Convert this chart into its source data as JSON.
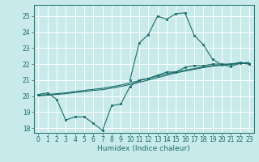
{
  "title": "",
  "xlabel": "Humidex (Indice chaleur)",
  "background_color": "#c8eaea",
  "grid_color": "#ffffff",
  "line_color": "#1a6b6b",
  "xlim": [
    -0.5,
    23.5
  ],
  "ylim": [
    17.7,
    25.7
  ],
  "yticks": [
    18,
    19,
    20,
    21,
    22,
    23,
    24,
    25
  ],
  "xticks": [
    0,
    1,
    2,
    3,
    4,
    5,
    6,
    7,
    8,
    9,
    10,
    11,
    12,
    13,
    14,
    15,
    16,
    17,
    18,
    19,
    20,
    21,
    22,
    23
  ],
  "line1_x": [
    0,
    1,
    2,
    3,
    4,
    5,
    6,
    7,
    8,
    9,
    10,
    11,
    12,
    13,
    14,
    15,
    16,
    17,
    18,
    19,
    20,
    21,
    22,
    23
  ],
  "line1_y": [
    20.1,
    20.2,
    19.8,
    18.5,
    18.7,
    18.7,
    18.3,
    17.85,
    19.4,
    19.5,
    20.6,
    21.0,
    21.1,
    21.3,
    21.5,
    21.5,
    21.8,
    21.9,
    21.9,
    22.0,
    22.0,
    22.0,
    22.1,
    22.0
  ],
  "line2_x": [
    0,
    1,
    2,
    3,
    4,
    5,
    6,
    7,
    8,
    9,
    10,
    11,
    12,
    13,
    14,
    15,
    16,
    17,
    18,
    19,
    20,
    21,
    22,
    23
  ],
  "line2_y": [
    20.05,
    20.1,
    20.15,
    20.2,
    20.28,
    20.35,
    20.42,
    20.48,
    20.58,
    20.68,
    20.82,
    20.96,
    21.1,
    21.25,
    21.38,
    21.52,
    21.62,
    21.72,
    21.82,
    21.9,
    21.95,
    22.0,
    22.05,
    22.1
  ],
  "line3_x": [
    0,
    1,
    2,
    3,
    4,
    5,
    6,
    7,
    8,
    9,
    10,
    11,
    12,
    13,
    14,
    15,
    16,
    17,
    18,
    19,
    20,
    21,
    22,
    23
  ],
  "line3_y": [
    20.0,
    20.05,
    20.1,
    20.15,
    20.22,
    20.28,
    20.35,
    20.4,
    20.5,
    20.6,
    20.72,
    20.86,
    21.0,
    21.15,
    21.3,
    21.45,
    21.56,
    21.67,
    21.78,
    21.87,
    21.93,
    21.98,
    22.03,
    22.05
  ],
  "line4_x": [
    10,
    11,
    12,
    13,
    14,
    15,
    16,
    17,
    18,
    19,
    20,
    21,
    22,
    23
  ],
  "line4_y": [
    21.0,
    23.3,
    23.85,
    25.0,
    24.8,
    25.15,
    25.2,
    23.8,
    23.2,
    22.3,
    21.95,
    21.85,
    22.05,
    22.0
  ]
}
